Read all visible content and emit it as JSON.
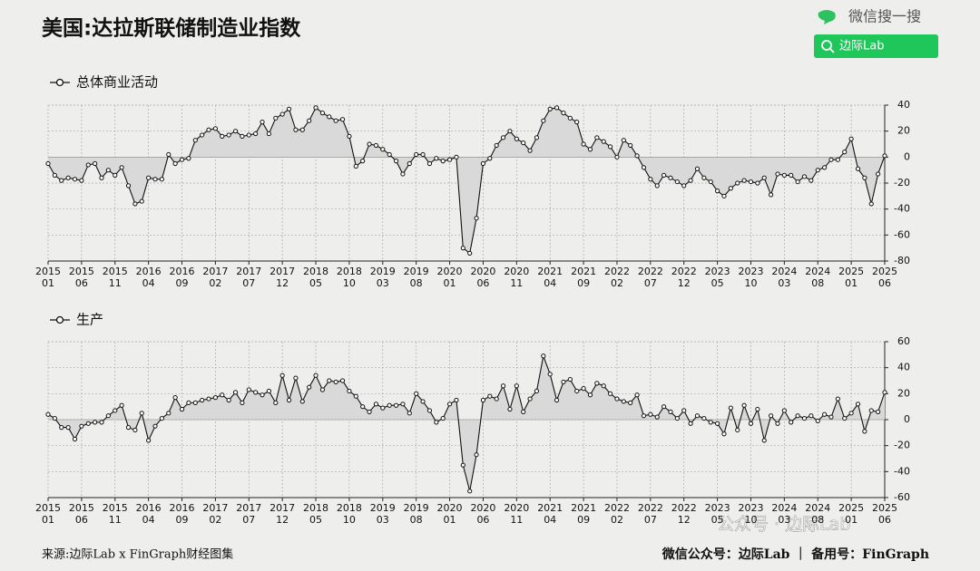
{
  "header": {
    "title": "美国:达拉斯联储制造业指数",
    "brand": "微信搜一搜",
    "search": "边际Lab"
  },
  "footer": {
    "source": "来源:边际Lab x FinGraph财经图集",
    "account": "微信公众号：边际Lab ｜ 备用号：FinGraph",
    "watermark": "公众号 · 边际Lab"
  },
  "chart_data": [
    {
      "type": "line",
      "series": [
        {
          "name": "总体商业活动",
          "color": "#111111",
          "values": [
            -5,
            -14,
            -18,
            -16,
            -17,
            -18,
            -6,
            -5,
            -16,
            -10,
            -14,
            -8,
            -22,
            -36,
            -34,
            -16,
            -17,
            -17,
            2,
            -5,
            -2,
            -1,
            13,
            17,
            21,
            22,
            16,
            17,
            20,
            16,
            17,
            18,
            27,
            18,
            30,
            33,
            37,
            21,
            21,
            28,
            38,
            34,
            31,
            28,
            29,
            16,
            -7,
            -3,
            10,
            9,
            6,
            2,
            -3,
            -13,
            -5,
            2,
            2,
            -5,
            -1,
            -3,
            -2,
            0,
            -70,
            -74,
            -47,
            -5,
            -1,
            9,
            15,
            20,
            14,
            11,
            5,
            15,
            28,
            37,
            38,
            34,
            30,
            27,
            10,
            6,
            15,
            12,
            8,
            0,
            13,
            9,
            1,
            -8,
            -17,
            -22,
            -14,
            -16,
            -19,
            -22,
            -18,
            -9,
            -16,
            -19,
            -26,
            -30,
            -24,
            -20,
            -18,
            -19,
            -20,
            -16,
            -29,
            -13,
            -14,
            -14,
            -19,
            -15,
            -18,
            -10,
            -8,
            -2,
            -2,
            4,
            14,
            -9,
            -16,
            -36,
            -13,
            1
          ]
        }
      ],
      "x": [
        "2015-01",
        "2015-02",
        "2015-03",
        "2015-04",
        "2015-05",
        "2015-06",
        "2015-07",
        "2015-08",
        "2015-09",
        "2015-10",
        "2015-11",
        "2015-12",
        "2016-01",
        "2016-02",
        "2016-03",
        "2016-04",
        "2016-05",
        "2016-06",
        "2016-07",
        "2016-08",
        "2016-09",
        "2016-10",
        "2016-11",
        "2016-12",
        "2017-01",
        "2017-02",
        "2017-03",
        "2017-04",
        "2017-05",
        "2017-06",
        "2017-07",
        "2017-08",
        "2017-09",
        "2017-10",
        "2017-11",
        "2017-12",
        "2018-01",
        "2018-02",
        "2018-03",
        "2018-04",
        "2018-05",
        "2018-06",
        "2018-07",
        "2018-08",
        "2018-09",
        "2018-10",
        "2018-11",
        "2018-12",
        "2019-01",
        "2019-02",
        "2019-03",
        "2019-04",
        "2019-05",
        "2019-06",
        "2019-07",
        "2019-08",
        "2019-09",
        "2019-10",
        "2019-11",
        "2019-12",
        "2020-01",
        "2020-02",
        "2020-03",
        "2020-04",
        "2020-05",
        "2020-06",
        "2020-07",
        "2020-08",
        "2020-09",
        "2020-10",
        "2020-11",
        "2020-12",
        "2021-01",
        "2021-02",
        "2021-03",
        "2021-04",
        "2021-05",
        "2021-06",
        "2021-07",
        "2021-08",
        "2021-09",
        "2021-10",
        "2021-11",
        "2021-12",
        "2022-01",
        "2022-02",
        "2022-03",
        "2022-04",
        "2022-05",
        "2022-06",
        "2022-07",
        "2022-08",
        "2022-09",
        "2022-10",
        "2022-11",
        "2022-12",
        "2023-01",
        "2023-02",
        "2023-03",
        "2023-04",
        "2023-05",
        "2023-06",
        "2023-07",
        "2023-08",
        "2023-09",
        "2023-10",
        "2023-11",
        "2023-12",
        "2024-01",
        "2024-02",
        "2024-03",
        "2024-04",
        "2024-05",
        "2024-06",
        "2024-07",
        "2024-08",
        "2024-09",
        "2024-10",
        "2024-11",
        "2024-12",
        "2025-01",
        "2025-02",
        "2025-03",
        "2025-04",
        "2025-05",
        "2025-06"
      ],
      "xticks": [
        {
          "value": "2015-01",
          "label": [
            "2015",
            "01"
          ]
        },
        {
          "value": "2015-06",
          "label": [
            "2015",
            "06"
          ]
        },
        {
          "value": "2015-11",
          "label": [
            "2015",
            "11"
          ]
        },
        {
          "value": "2016-04",
          "label": [
            "2016",
            "04"
          ]
        },
        {
          "value": "2016-09",
          "label": [
            "2016",
            "09"
          ]
        },
        {
          "value": "2017-02",
          "label": [
            "2017",
            "02"
          ]
        },
        {
          "value": "2017-07",
          "label": [
            "2017",
            "07"
          ]
        },
        {
          "value": "2017-12",
          "label": [
            "2017",
            "12"
          ]
        },
        {
          "value": "2018-05",
          "label": [
            "2018",
            "05"
          ]
        },
        {
          "value": "2018-10",
          "label": [
            "2018",
            "10"
          ]
        },
        {
          "value": "2019-03",
          "label": [
            "2019",
            "03"
          ]
        },
        {
          "value": "2019-08",
          "label": [
            "2019",
            "08"
          ]
        },
        {
          "value": "2020-01",
          "label": [
            "2020",
            "01"
          ]
        },
        {
          "value": "2020-06",
          "label": [
            "2020",
            "06"
          ]
        },
        {
          "value": "2020-11",
          "label": [
            "2020",
            "11"
          ]
        },
        {
          "value": "2021-04",
          "label": [
            "2021",
            "04"
          ]
        },
        {
          "value": "2021-09",
          "label": [
            "2021",
            "09"
          ]
        },
        {
          "value": "2022-02",
          "label": [
            "2022",
            "02"
          ]
        },
        {
          "value": "2022-07",
          "label": [
            "2022",
            "07"
          ]
        },
        {
          "value": "2022-12",
          "label": [
            "2022",
            "12"
          ]
        },
        {
          "value": "2023-05",
          "label": [
            "2023",
            "05"
          ]
        },
        {
          "value": "2023-10",
          "label": [
            "2023",
            "10"
          ]
        },
        {
          "value": "2024-03",
          "label": [
            "2024",
            "03"
          ]
        },
        {
          "value": "2024-08",
          "label": [
            "2024",
            "08"
          ]
        },
        {
          "value": "2025-01",
          "label": [
            "2025",
            "01"
          ]
        },
        {
          "value": "2025-06",
          "label": [
            "2025",
            "06"
          ]
        }
      ],
      "ylim": [
        -80,
        40
      ],
      "yticks": [
        -80,
        -60,
        -40,
        -20,
        0,
        20,
        40
      ],
      "grid": true,
      "area_color": "#d9d9d9"
    },
    {
      "type": "line",
      "series": [
        {
          "name": "生产",
          "color": "#111111",
          "values": [
            4,
            1,
            -6,
            -6,
            -15,
            -5,
            -3,
            -2,
            -2,
            3,
            7,
            11,
            -6,
            -8,
            5,
            -16,
            -5,
            1,
            5,
            17,
            8,
            13,
            13,
            15,
            16,
            17,
            19,
            15,
            21,
            13,
            23,
            21,
            19,
            22,
            13,
            34,
            15,
            32,
            14,
            25,
            34,
            23,
            30,
            29,
            30,
            22,
            18,
            10,
            6,
            12,
            9,
            11,
            11,
            12,
            5,
            20,
            14,
            7,
            -2,
            1,
            12,
            15,
            -35,
            -55,
            -27,
            15,
            18,
            16,
            26,
            8,
            26,
            6,
            16,
            22,
            49,
            35,
            15,
            29,
            31,
            22,
            24,
            19,
            28,
            26,
            20,
            16,
            14,
            13,
            19,
            3,
            4,
            2,
            10,
            6,
            1,
            7,
            -3,
            3,
            1,
            -2,
            -3,
            -11,
            9,
            -8,
            11,
            -3,
            8,
            -16,
            3,
            -3,
            7,
            -2,
            3,
            1,
            3,
            -1,
            4,
            2,
            16,
            1,
            5,
            12,
            -9,
            7,
            6,
            21
          ]
        }
      ],
      "x": [
        "2015-01",
        "2015-02",
        "2015-03",
        "2015-04",
        "2015-05",
        "2015-06",
        "2015-07",
        "2015-08",
        "2015-09",
        "2015-10",
        "2015-11",
        "2015-12",
        "2016-01",
        "2016-02",
        "2016-03",
        "2016-04",
        "2016-05",
        "2016-06",
        "2016-07",
        "2016-08",
        "2016-09",
        "2016-10",
        "2016-11",
        "2016-12",
        "2017-01",
        "2017-02",
        "2017-03",
        "2017-04",
        "2017-05",
        "2017-06",
        "2017-07",
        "2017-08",
        "2017-09",
        "2017-10",
        "2017-11",
        "2017-12",
        "2018-01",
        "2018-02",
        "2018-03",
        "2018-04",
        "2018-05",
        "2018-06",
        "2018-07",
        "2018-08",
        "2018-09",
        "2018-10",
        "2018-11",
        "2018-12",
        "2019-01",
        "2019-02",
        "2019-03",
        "2019-04",
        "2019-05",
        "2019-06",
        "2019-07",
        "2019-08",
        "2019-09",
        "2019-10",
        "2019-11",
        "2019-12",
        "2020-01",
        "2020-02",
        "2020-03",
        "2020-04",
        "2020-05",
        "2020-06",
        "2020-07",
        "2020-08",
        "2020-09",
        "2020-10",
        "2020-11",
        "2020-12",
        "2021-01",
        "2021-02",
        "2021-03",
        "2021-04",
        "2021-05",
        "2021-06",
        "2021-07",
        "2021-08",
        "2021-09",
        "2021-10",
        "2021-11",
        "2021-12",
        "2022-01",
        "2022-02",
        "2022-03",
        "2022-04",
        "2022-05",
        "2022-06",
        "2022-07",
        "2022-08",
        "2022-09",
        "2022-10",
        "2022-11",
        "2022-12",
        "2023-01",
        "2023-02",
        "2023-03",
        "2023-04",
        "2023-05",
        "2023-06",
        "2023-07",
        "2023-08",
        "2023-09",
        "2023-10",
        "2023-11",
        "2023-12",
        "2024-01",
        "2024-02",
        "2024-03",
        "2024-04",
        "2024-05",
        "2024-06",
        "2024-07",
        "2024-08",
        "2024-09",
        "2024-10",
        "2024-11",
        "2024-12",
        "2025-01",
        "2025-02",
        "2025-03",
        "2025-04",
        "2025-05",
        "2025-06"
      ],
      "xticks": [
        {
          "value": "2015-01",
          "label": [
            "2015",
            "01"
          ]
        },
        {
          "value": "2015-06",
          "label": [
            "2015",
            "06"
          ]
        },
        {
          "value": "2015-11",
          "label": [
            "2015",
            "11"
          ]
        },
        {
          "value": "2016-04",
          "label": [
            "2016",
            "04"
          ]
        },
        {
          "value": "2016-09",
          "label": [
            "2016",
            "09"
          ]
        },
        {
          "value": "2017-02",
          "label": [
            "2017",
            "02"
          ]
        },
        {
          "value": "2017-07",
          "label": [
            "2017",
            "07"
          ]
        },
        {
          "value": "2017-12",
          "label": [
            "2017",
            "12"
          ]
        },
        {
          "value": "2018-05",
          "label": [
            "2018",
            "05"
          ]
        },
        {
          "value": "2018-10",
          "label": [
            "2018",
            "10"
          ]
        },
        {
          "value": "2019-03",
          "label": [
            "2019",
            "03"
          ]
        },
        {
          "value": "2019-08",
          "label": [
            "2019",
            "08"
          ]
        },
        {
          "value": "2020-01",
          "label": [
            "2020",
            "01"
          ]
        },
        {
          "value": "2020-06",
          "label": [
            "2020",
            "06"
          ]
        },
        {
          "value": "2020-11",
          "label": [
            "2020",
            "11"
          ]
        },
        {
          "value": "2021-04",
          "label": [
            "2021",
            "04"
          ]
        },
        {
          "value": "2021-09",
          "label": [
            "2021",
            "09"
          ]
        },
        {
          "value": "2022-02",
          "label": [
            "2022",
            "02"
          ]
        },
        {
          "value": "2022-07",
          "label": [
            "2022",
            "07"
          ]
        },
        {
          "value": "2022-12",
          "label": [
            "2022",
            "12"
          ]
        },
        {
          "value": "2023-05",
          "label": [
            "2023",
            "05"
          ]
        },
        {
          "value": "2023-10",
          "label": [
            "2023",
            "10"
          ]
        },
        {
          "value": "2024-03",
          "label": [
            "2024",
            "03"
          ]
        },
        {
          "value": "2024-08",
          "label": [
            "2024",
            "08"
          ]
        },
        {
          "value": "2025-01",
          "label": [
            "2025",
            "01"
          ]
        },
        {
          "value": "2025-06",
          "label": [
            "2025",
            "06"
          ]
        }
      ],
      "ylim": [
        -60,
        60
      ],
      "yticks": [
        -60,
        -40,
        -20,
        0,
        20,
        40,
        60
      ],
      "grid": true,
      "area_color": "#d9d9d9"
    }
  ]
}
